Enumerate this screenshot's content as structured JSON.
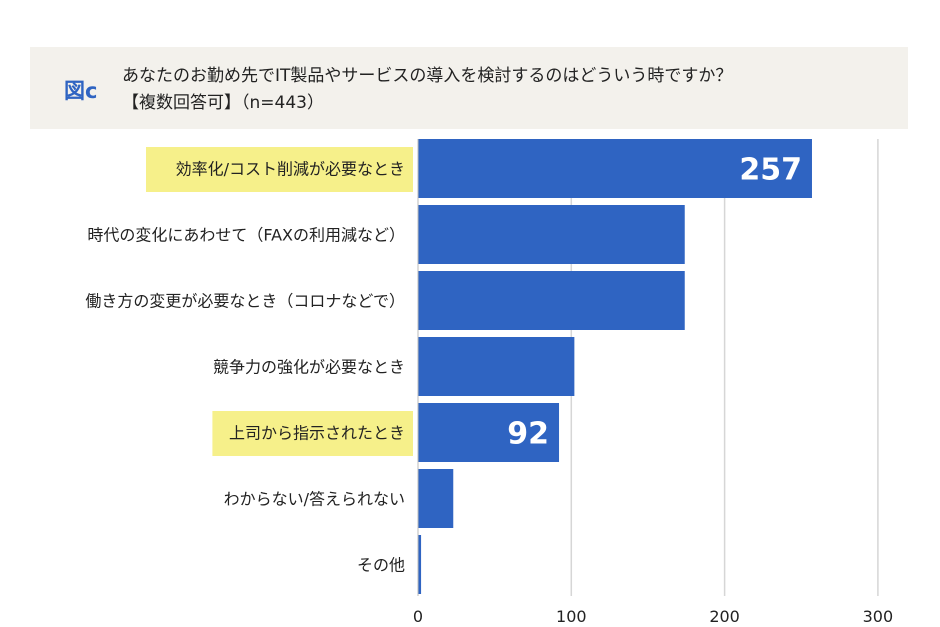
{
  "header": {
    "figure_label": "図c",
    "question_line1": "あなたのお勤め先でIT製品やサービスの導入を検討するのはどういう時ですか？",
    "question_line2": "【複数回答可】（n=443）"
  },
  "colors": {
    "bar": "#2f64c2",
    "highlight": "#f6f08a",
    "grid": "#d6d6d6",
    "header_bg": "#f3f1ec",
    "accent": "#2f64c2"
  },
  "chart_data": {
    "type": "bar",
    "orientation": "horizontal",
    "categories": [
      "効率化/コスト削減が必要なとき",
      "時代の変化にあわせて（FAXの利用減など）",
      "働き方の変更が必要なとき（コロナなどで）",
      "競争力の強化が必要なとき",
      "上司から指示されたとき",
      "わからない/答えられない",
      "その他"
    ],
    "values": [
      257,
      174,
      174,
      102,
      92,
      23,
      2
    ],
    "data_labels": [
      "257",
      "",
      "",
      "",
      "92",
      "",
      ""
    ],
    "highlighted": [
      true,
      false,
      false,
      false,
      true,
      false,
      false
    ],
    "xlim": [
      0,
      300
    ],
    "xticks": [
      "0",
      "100",
      "200",
      "300"
    ],
    "grid": true
  }
}
